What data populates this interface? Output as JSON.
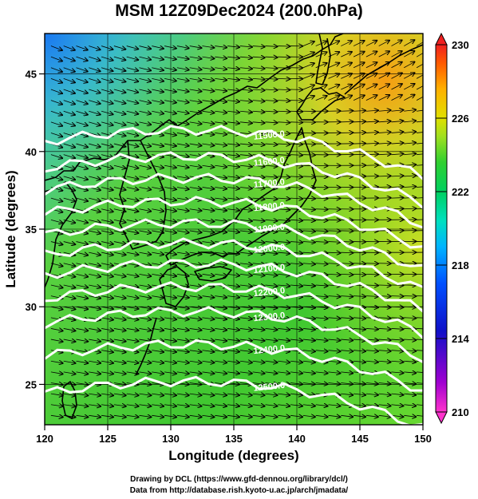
{
  "title": "MSM 12Z09Dec2024 (200.0hPa)",
  "xlabel": "Longitude (degrees)",
  "ylabel": "Latitude  (degrees)",
  "credits": [
    "Drawing by DCL (https://www.gfd-dennou.org/library/dcl/)",
    "Data from http://database.rish.kyoto-u.ac.jp/arch/jmadata/"
  ],
  "chart_data": {
    "type": "heatmap",
    "description_of_fields": "Shaded temperature with wind vectors and geopotential height contours",
    "xlim": [
      120,
      150
    ],
    "ylim": [
      22.4,
      47.6
    ],
    "x_ticks": [
      "120",
      "125",
      "130",
      "135",
      "140",
      "145",
      "150"
    ],
    "y_ticks": [
      "25",
      "30",
      "35",
      "40",
      "45"
    ],
    "colorbar": {
      "min": 210,
      "max": 230,
      "tick_labels": [
        "230",
        "226",
        "222",
        "218",
        "214",
        "210"
      ],
      "colors": [
        "#ff33cc",
        "#8a00d0",
        "#1010c8",
        "#0060ff",
        "#00b4ff",
        "#00e0c0",
        "#00d060",
        "#30d030",
        "#a0e020",
        "#e0e000",
        "#ffb000",
        "#ff5a00",
        "#f02020"
      ]
    },
    "contours": [
      {
        "label": "11500.0",
        "lat_at_135E": 41.3
      },
      {
        "label": "11600.0",
        "lat_at_135E": 39.6
      },
      {
        "label": "11700.0",
        "lat_at_135E": 38.2
      },
      {
        "label": "11800.0",
        "lat_at_135E": 36.7
      },
      {
        "label": "11900.0",
        "lat_at_135E": 35.3
      },
      {
        "label": "12000.0",
        "lat_at_135E": 34.0
      },
      {
        "label": "12100.0",
        "lat_at_135E": 32.7
      },
      {
        "label": "12200.0",
        "lat_at_135E": 31.2
      },
      {
        "label": "12300.0",
        "lat_at_135E": 29.6
      },
      {
        "label": "12400.0",
        "lat_at_135E": 27.5
      },
      {
        "label": "12500.0",
        "lat_at_135E": 25.1
      }
    ],
    "wind_direction": "westerly, veering to WNW/ESE across Japan"
  }
}
